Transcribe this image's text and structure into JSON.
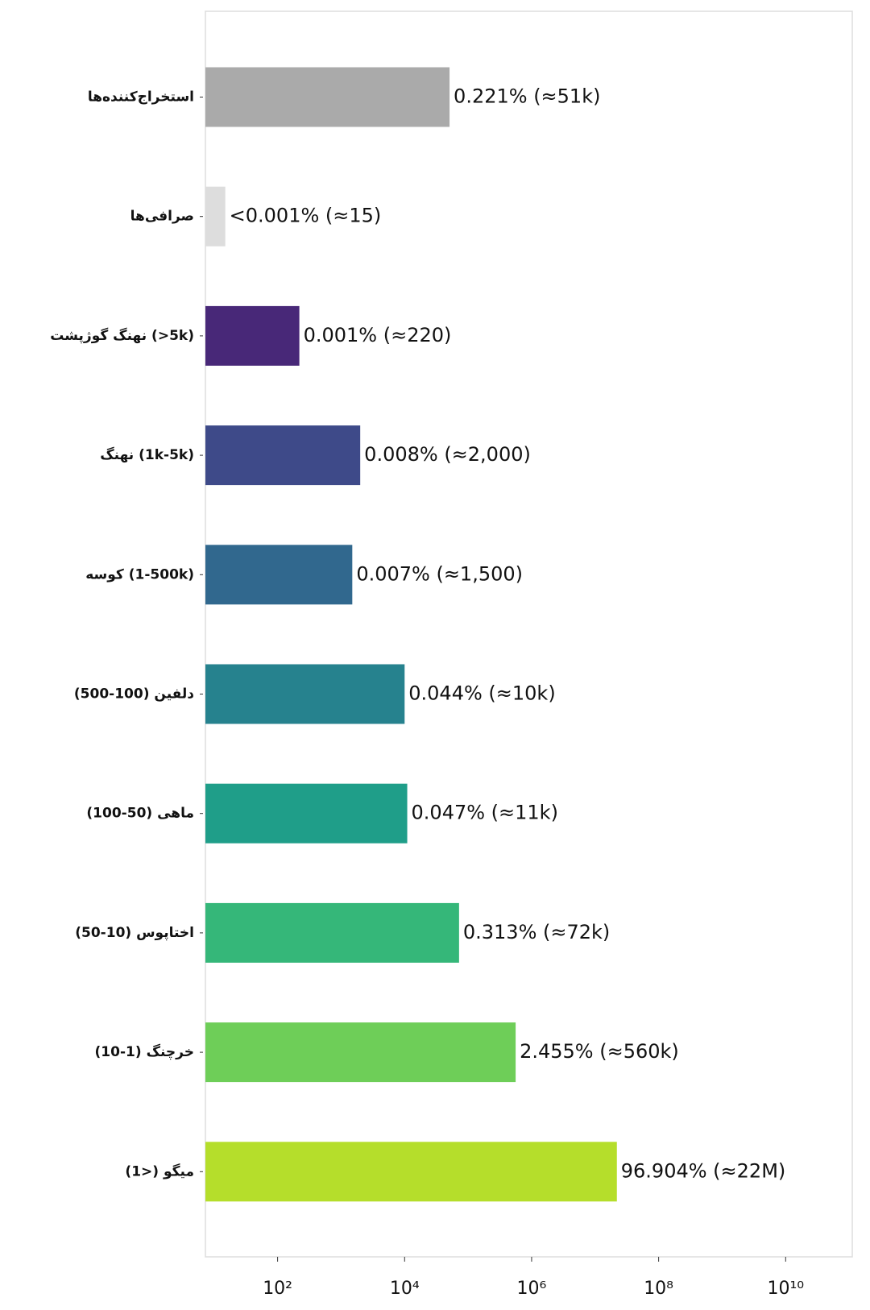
{
  "chart_data": {
    "type": "bar",
    "orientation": "horizontal",
    "xscale": "log",
    "categories": [
      "استخراج‌کننده‌ها",
      "صرافی‌ها",
      "نهنگ گوژپشت (>5k)",
      "نهنگ (1k-5k)",
      "کوسه (500-1k)",
      "دلفین (100-500)",
      "ماهی  (50-100)",
      "اختاپوس (10-50)",
      "خرچنگ  (1-10)",
      "میگو  (<1)"
    ],
    "values": [
      51000,
      15,
      220,
      2000,
      1500,
      10000,
      11000,
      72000,
      560000,
      22000000
    ],
    "value_labels": [
      "0.221% (≈51k)",
      "<0.001% (≈15)",
      "0.001% (≈220)",
      "0.008% (≈2,000)",
      "0.007% (≈1,500)",
      "0.044% (≈10k)",
      "0.047% (≈11k)",
      "0.313% (≈72k)",
      "2.455% (≈560k)",
      "96.904% (≈22M)"
    ],
    "colors": [
      "#aaaaaa",
      "#dddddd",
      "#482878",
      "#3e4a89",
      "#31688e",
      "#26828e",
      "#1f9e89",
      "#35b779",
      "#6ece58",
      "#b5de2b"
    ],
    "xlim": [
      7.3,
      112000000000
    ],
    "xticks": [
      {
        "value": 100,
        "label": "10²"
      },
      {
        "value": 10000,
        "label": "10⁴"
      },
      {
        "value": 1000000,
        "label": "10⁶"
      },
      {
        "value": 100000000,
        "label": "10⁸"
      },
      {
        "value": 10000000000,
        "label": "10¹⁰"
      }
    ]
  }
}
